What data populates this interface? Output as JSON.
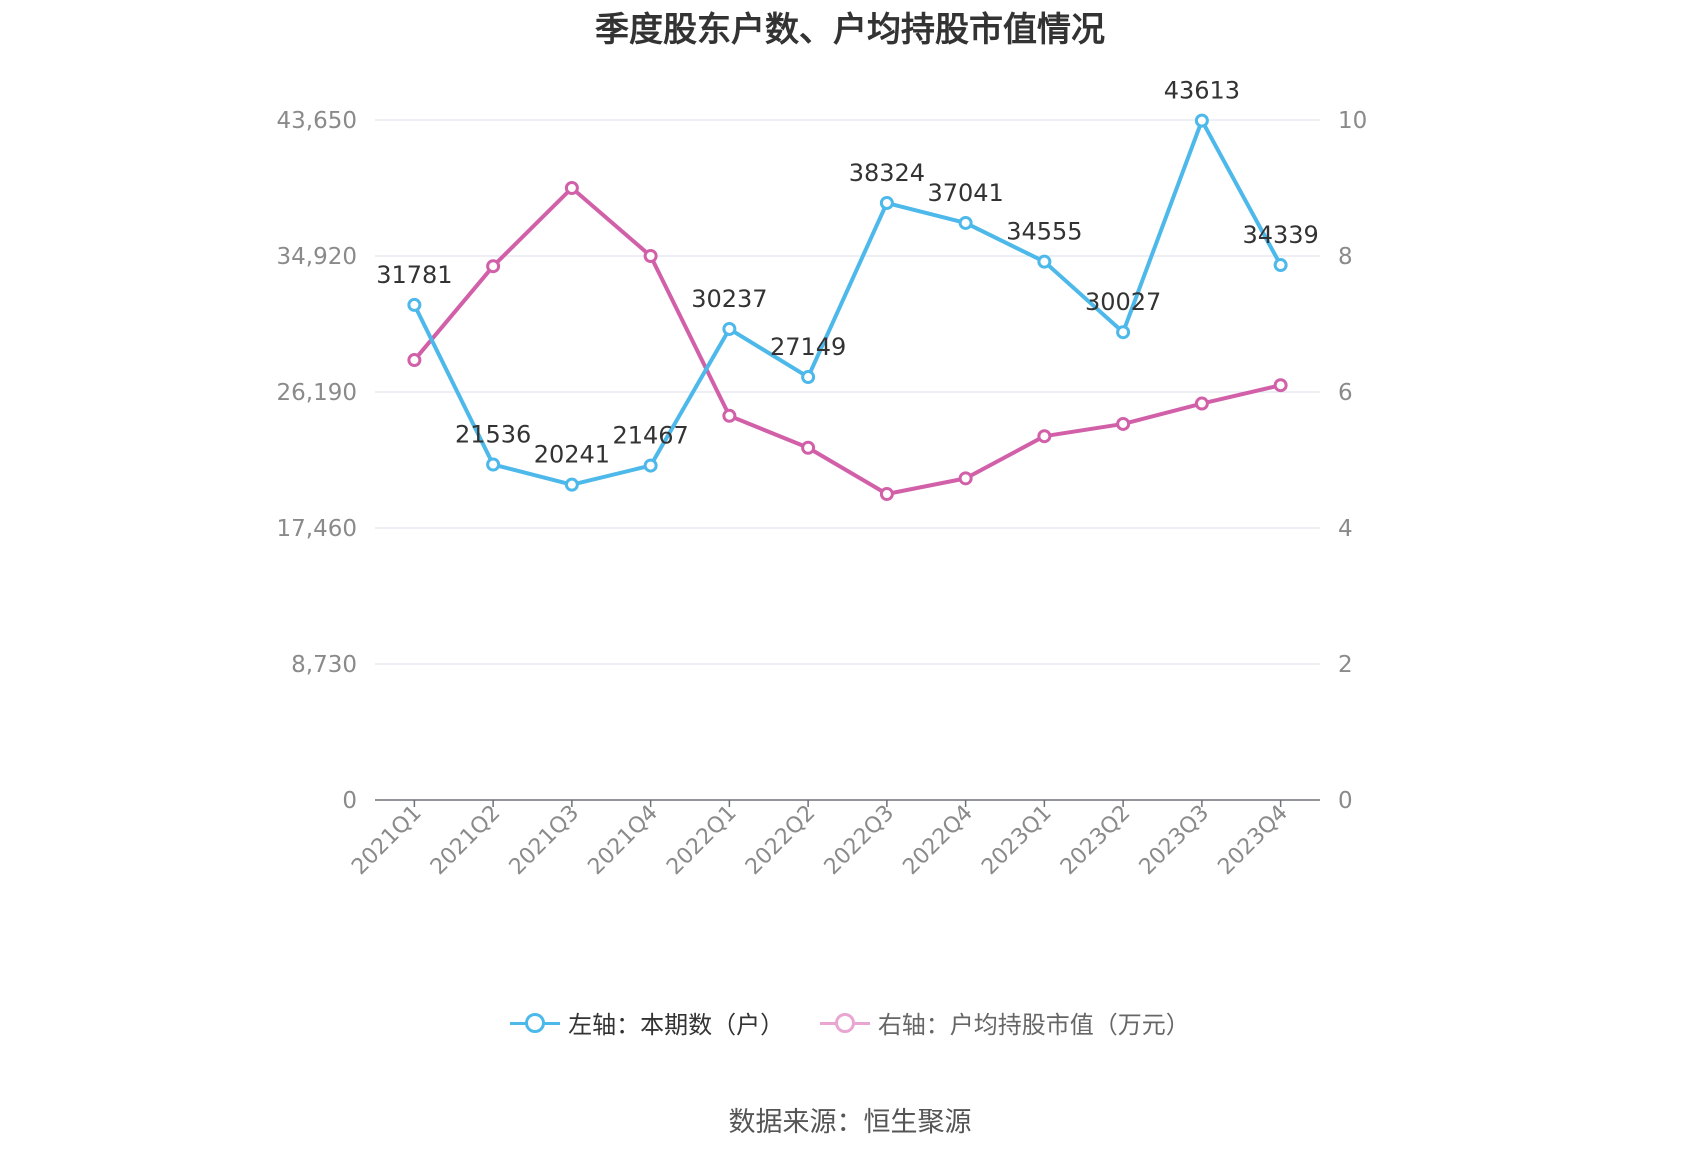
{
  "title": "季度股东户数、户均持股市值情况",
  "source": "数据来源：恒生聚源",
  "colors": {
    "left_series": "#4db8ea",
    "right_series": "#d160a8",
    "right_legend": "#e8a6d1"
  },
  "chart_data": {
    "type": "line",
    "categories": [
      "2021Q1",
      "2021Q2",
      "2021Q3",
      "2021Q4",
      "2022Q1",
      "2022Q2",
      "2022Q3",
      "2022Q4",
      "2023Q1",
      "2023Q2",
      "2023Q3",
      "2023Q4"
    ],
    "series": [
      {
        "name": "左轴：本期数（户）",
        "axis": "left",
        "values": [
          31781,
          21536,
          20241,
          21467,
          30237,
          27149,
          38324,
          37041,
          34555,
          30027,
          43613,
          34339
        ],
        "labels": [
          "31781",
          "21536",
          "20241",
          "21467",
          "30237",
          "27149",
          "38324",
          "37041",
          "34555",
          "30027",
          "43613",
          "34339"
        ]
      },
      {
        "name": "右轴：户均持股市值（万元）",
        "axis": "right",
        "values": [
          6.47,
          7.85,
          9.0,
          8.0,
          5.65,
          5.18,
          4.5,
          4.73,
          5.35,
          5.53,
          5.83,
          6.1
        ]
      }
    ],
    "left_axis": {
      "min": 0,
      "max": 43650,
      "ticks": [
        "0",
        "8,730",
        "17,460",
        "26,190",
        "34,920",
        "43,650"
      ]
    },
    "right_axis": {
      "min": 0,
      "max": 10,
      "ticks": [
        "0",
        "2",
        "4",
        "6",
        "8",
        "10"
      ]
    },
    "grid": true,
    "legend_position": "bottom"
  }
}
